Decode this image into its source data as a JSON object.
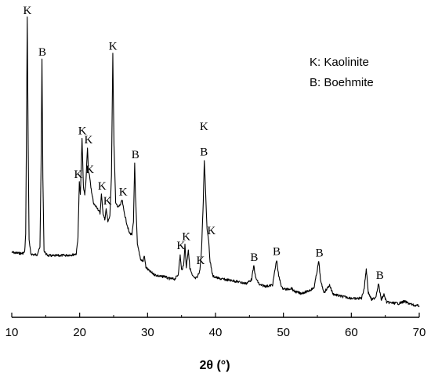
{
  "chart_data": {
    "type": "line",
    "title": "",
    "xlabel": "2θ (°)",
    "ylabel": "",
    "xlim": [
      10,
      70
    ],
    "xticks": [
      "10",
      "20",
      "30",
      "40",
      "50",
      "60",
      "70"
    ],
    "legend": {
      "placement": "top-right",
      "entries": [
        "K: Kaolinite",
        "B: Boehmite"
      ]
    },
    "grid": false,
    "series": [
      {
        "points": [
          [
            10.0,
            0.2
          ],
          [
            10.5,
            0.198
          ],
          [
            11.0,
            0.197
          ],
          [
            11.5,
            0.196
          ],
          [
            11.9,
            0.2
          ],
          [
            12.05,
            0.26
          ],
          [
            12.15,
            0.55
          ],
          [
            12.28,
            0.99
          ],
          [
            12.42,
            0.56
          ],
          [
            12.55,
            0.24
          ],
          [
            12.8,
            0.195
          ],
          [
            13.2,
            0.192
          ],
          [
            13.7,
            0.192
          ],
          [
            14.15,
            0.215
          ],
          [
            14.32,
            0.5
          ],
          [
            14.45,
            0.845
          ],
          [
            14.58,
            0.45
          ],
          [
            14.75,
            0.205
          ],
          [
            15.2,
            0.19
          ],
          [
            16.0,
            0.188
          ],
          [
            17.0,
            0.189
          ],
          [
            18.0,
            0.19
          ],
          [
            19.0,
            0.192
          ],
          [
            19.5,
            0.195
          ],
          [
            19.75,
            0.25
          ],
          [
            19.95,
            0.435
          ],
          [
            20.1,
            0.39
          ],
          [
            20.35,
            0.58
          ],
          [
            20.55,
            0.42
          ],
          [
            20.75,
            0.395
          ],
          [
            20.9,
            0.43
          ],
          [
            21.15,
            0.55
          ],
          [
            21.3,
            0.47
          ],
          [
            21.5,
            0.45
          ],
          [
            21.75,
            0.4
          ],
          [
            22.1,
            0.36
          ],
          [
            22.6,
            0.35
          ],
          [
            23.0,
            0.33
          ],
          [
            23.2,
            0.395
          ],
          [
            23.45,
            0.33
          ],
          [
            23.7,
            0.31
          ],
          [
            23.9,
            0.345
          ],
          [
            24.15,
            0.305
          ],
          [
            24.45,
            0.32
          ],
          [
            24.68,
            0.46
          ],
          [
            24.88,
            0.865
          ],
          [
            25.05,
            0.56
          ],
          [
            25.3,
            0.37
          ],
          [
            25.6,
            0.35
          ],
          [
            26.0,
            0.36
          ],
          [
            26.25,
            0.375
          ],
          [
            26.5,
            0.34
          ],
          [
            26.9,
            0.3
          ],
          [
            27.3,
            0.265
          ],
          [
            27.7,
            0.26
          ],
          [
            27.92,
            0.3
          ],
          [
            28.1,
            0.5
          ],
          [
            28.22,
            0.39
          ],
          [
            28.5,
            0.225
          ],
          [
            29.0,
            0.175
          ],
          [
            29.35,
            0.17
          ],
          [
            29.5,
            0.19
          ],
          [
            29.75,
            0.15
          ],
          [
            30.2,
            0.138
          ],
          [
            31.0,
            0.125
          ],
          [
            32.0,
            0.118
          ],
          [
            32.5,
            0.12
          ],
          [
            33.0,
            0.112
          ],
          [
            34.0,
            0.11
          ],
          [
            34.5,
            0.125
          ],
          [
            34.8,
            0.19
          ],
          [
            35.0,
            0.14
          ],
          [
            35.3,
            0.155
          ],
          [
            35.5,
            0.225
          ],
          [
            35.7,
            0.15
          ],
          [
            36.0,
            0.21
          ],
          [
            36.2,
            0.15
          ],
          [
            36.6,
            0.12
          ],
          [
            37.0,
            0.112
          ],
          [
            37.3,
            0.115
          ],
          [
            37.7,
            0.14
          ],
          [
            37.95,
            0.21
          ],
          [
            38.2,
            0.37
          ],
          [
            38.35,
            0.51
          ],
          [
            38.5,
            0.43
          ],
          [
            38.75,
            0.28
          ],
          [
            38.95,
            0.25
          ],
          [
            39.2,
            0.17
          ],
          [
            39.6,
            0.12
          ],
          [
            40.5,
            0.112
          ],
          [
            41.5,
            0.108
          ],
          [
            42.5,
            0.105
          ],
          [
            43.5,
            0.1
          ],
          [
            44.5,
            0.095
          ],
          [
            45.3,
            0.108
          ],
          [
            45.65,
            0.155
          ],
          [
            45.9,
            0.115
          ],
          [
            46.5,
            0.09
          ],
          [
            47.5,
            0.086
          ],
          [
            48.4,
            0.09
          ],
          [
            48.75,
            0.14
          ],
          [
            49.0,
            0.175
          ],
          [
            49.3,
            0.12
          ],
          [
            49.8,
            0.08
          ],
          [
            50.5,
            0.075
          ],
          [
            51.2,
            0.08
          ],
          [
            51.5,
            0.07
          ],
          [
            52.5,
            0.062
          ],
          [
            53.5,
            0.068
          ],
          [
            54.5,
            0.08
          ],
          [
            54.9,
            0.13
          ],
          [
            55.2,
            0.17
          ],
          [
            55.5,
            0.1
          ],
          [
            56.0,
            0.065
          ],
          [
            56.8,
            0.09
          ],
          [
            57.3,
            0.06
          ],
          [
            58.5,
            0.052
          ],
          [
            59.5,
            0.048
          ],
          [
            60.5,
            0.044
          ],
          [
            61.5,
            0.046
          ],
          [
            61.9,
            0.08
          ],
          [
            62.2,
            0.145
          ],
          [
            62.5,
            0.065
          ],
          [
            63.0,
            0.04
          ],
          [
            63.6,
            0.05
          ],
          [
            64.0,
            0.095
          ],
          [
            64.4,
            0.04
          ],
          [
            64.8,
            0.058
          ],
          [
            65.2,
            0.032
          ],
          [
            66.0,
            0.03
          ],
          [
            67.0,
            0.028
          ],
          [
            67.8,
            0.035
          ],
          [
            68.5,
            0.028
          ],
          [
            69.2,
            0.022
          ],
          [
            70.0,
            0.02
          ]
        ]
      }
    ],
    "peak_labels": [
      {
        "x": 12.3,
        "y": 0.99,
        "text": "K"
      },
      {
        "x": 14.5,
        "y": 0.85,
        "text": "B"
      },
      {
        "x": 20.4,
        "y": 0.585,
        "text": "K"
      },
      {
        "x": 21.3,
        "y": 0.555,
        "text": "K"
      },
      {
        "x": 19.8,
        "y": 0.44,
        "text": "K"
      },
      {
        "x": 21.5,
        "y": 0.455,
        "text": "K"
      },
      {
        "x": 23.3,
        "y": 0.4,
        "text": "K"
      },
      {
        "x": 24.1,
        "y": 0.35,
        "text": "K"
      },
      {
        "x": 24.9,
        "y": 0.87,
        "text": "K"
      },
      {
        "x": 26.4,
        "y": 0.38,
        "text": "K"
      },
      {
        "x": 28.2,
        "y": 0.505,
        "text": "B"
      },
      {
        "x": 34.9,
        "y": 0.2,
        "text": "K"
      },
      {
        "x": 35.7,
        "y": 0.23,
        "text": "K"
      },
      {
        "x": 37.8,
        "y": 0.15,
        "text": "K"
      },
      {
        "x": 38.3,
        "y": 0.6,
        "text": "K"
      },
      {
        "x": 38.3,
        "y": 0.515,
        "text": "B"
      },
      {
        "x": 39.4,
        "y": 0.25,
        "text": "K"
      },
      {
        "x": 45.7,
        "y": 0.16,
        "text": "B"
      },
      {
        "x": 49.0,
        "y": 0.18,
        "text": "B"
      },
      {
        "x": 55.3,
        "y": 0.175,
        "text": "B"
      },
      {
        "x": 64.2,
        "y": 0.1,
        "text": "B"
      }
    ]
  }
}
